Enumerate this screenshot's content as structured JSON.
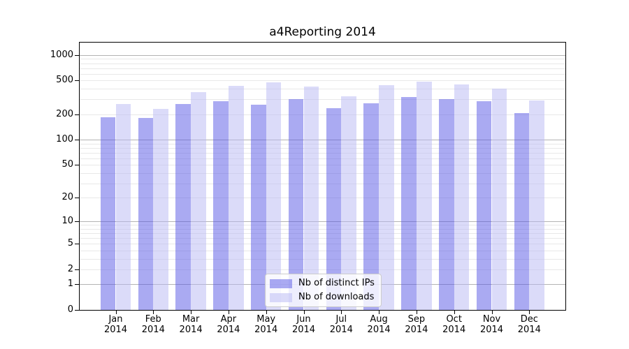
{
  "title": "a4Reporting 2014",
  "chart_data": {
    "type": "bar",
    "title": "a4Reporting 2014",
    "categories": [
      "Jan",
      "Feb",
      "Mar",
      "Apr",
      "May",
      "Jun",
      "Jul",
      "Aug",
      "Sep",
      "Oct",
      "Nov",
      "Dec"
    ],
    "category_year": "2014",
    "series": [
      {
        "name": "Nb of distinct IPs",
        "color": "#5555e5",
        "fill_alpha": 0.5,
        "values": [
          185,
          180,
          265,
          283,
          260,
          300,
          235,
          272,
          320,
          300,
          283,
          205
        ]
      },
      {
        "name": "Nb of downloads",
        "color": "#b7b7f3",
        "fill_alpha": 0.5,
        "values": [
          265,
          230,
          365,
          435,
          480,
          425,
          325,
          445,
          490,
          450,
          400,
          290
        ]
      }
    ],
    "y_scale": "log10(value+1)",
    "y_tick_values": [
      1000,
      500,
      200,
      100,
      50,
      20,
      10,
      5,
      2,
      1,
      0
    ],
    "y_major_grid_values": [
      1,
      10,
      100,
      1000
    ],
    "y_minor_grid_values": [
      2,
      3,
      4,
      5,
      6,
      7,
      8,
      9,
      20,
      30,
      40,
      50,
      60,
      70,
      80,
      90,
      200,
      300,
      400,
      500,
      600,
      700,
      800,
      900
    ],
    "ylim": [
      0,
      1430
    ],
    "grid_major_color": "#b3b3b3",
    "grid_minor_color": "#e8e8e8",
    "legend_position": "lower center",
    "legend_labels": [
      "Nb of distinct IPs",
      "Nb of downloads"
    ]
  }
}
